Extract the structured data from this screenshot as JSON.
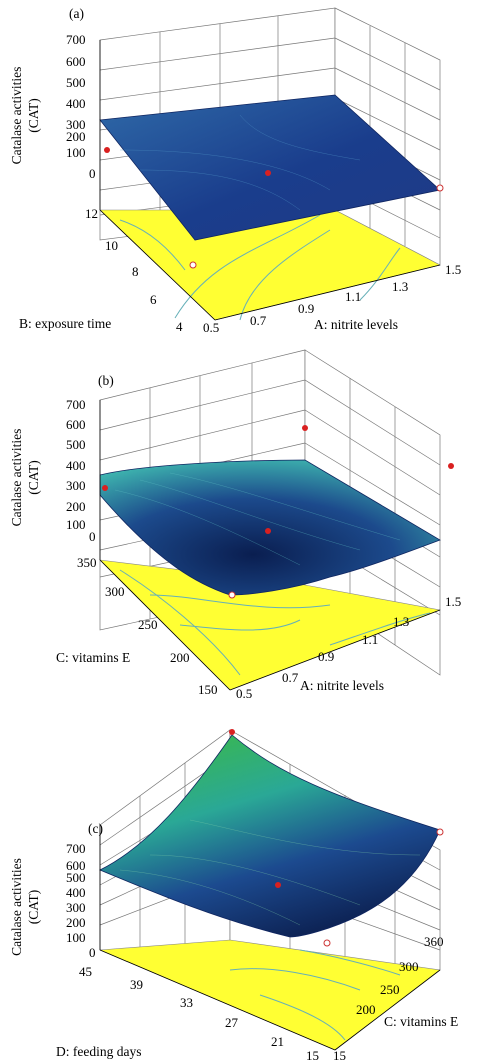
{
  "chart_data": [
    {
      "type": "surface",
      "panel_label": "(a)",
      "zlabel_line1": "Catalase activities",
      "zlabel_line2": "(CAT)",
      "xlabel": "A: nitrite levels",
      "ylabel": "B: exposure time",
      "z_ticks": [
        "700",
        "600",
        "500",
        "400",
        "300",
        "200",
        "100",
        "0"
      ],
      "x_ticks": [
        "0.5",
        "0.7",
        "0.9",
        "1.1",
        "1.3",
        "1.5"
      ],
      "y_ticks": [
        "4",
        "6",
        "8",
        "10",
        "12"
      ],
      "zlim": [
        0,
        700
      ],
      "xlim": [
        0.5,
        1.5
      ],
      "ylim": [
        4,
        12
      ],
      "surface_corners_z": {
        "x0_y0": 40,
        "x1_y0": 70,
        "x0_y1": 270,
        "x1_y1": 280
      },
      "design_points_z": [
        120,
        100,
        100
      ],
      "colors": {
        "surface_low": "#1f3a8c",
        "surface_high": "#3aa0a8",
        "floor": "#ffff33"
      }
    },
    {
      "type": "surface",
      "panel_label": "(b)",
      "zlabel_line1": "Catalase activities",
      "zlabel_line2": "(CAT)",
      "xlabel": "A: nitrite levels",
      "ylabel": "C: vitamins E",
      "z_ticks": [
        "700",
        "600",
        "500",
        "400",
        "300",
        "200",
        "100",
        "0"
      ],
      "x_ticks": [
        "0.5",
        "0.7",
        "0.9",
        "1.1",
        "1.3",
        "1.5"
      ],
      "y_ticks": [
        "150",
        "200",
        "250",
        "300",
        "350"
      ],
      "zlim": [
        0,
        700
      ],
      "xlim": [
        0.5,
        1.5
      ],
      "ylim": [
        150,
        350
      ],
      "surface_corners_z": {
        "x0_y0": 210,
        "x1_y0": 240,
        "x0_y1": 340,
        "x1_y1": 370
      },
      "design_points_z": [
        250,
        120,
        420
      ],
      "colors": {
        "surface_low": "#0b2a6a",
        "surface_high": "#3ab5b0",
        "floor": "#ffff33"
      }
    },
    {
      "type": "surface",
      "panel_label": "(c)",
      "zlabel_line1": "Catalase activities",
      "zlabel_line2": "(CAT)",
      "xlabel": "C: vitamins E",
      "ylabel": "D: feeding days",
      "z_ticks": [
        "700",
        "600",
        "500",
        "400",
        "300",
        "200",
        "100",
        "0"
      ],
      "x_ticks": [
        "150",
        "200",
        "250",
        "300",
        "360"
      ],
      "y_ticks": [
        "15",
        "21",
        "27",
        "33",
        "39",
        "45"
      ],
      "zlim": [
        0,
        700
      ],
      "xlim": [
        150,
        360
      ],
      "ylim": [
        15,
        45
      ],
      "surface_corners_z": {
        "x0_y0": 700,
        "x1_y0": 300,
        "x0_y1": 520,
        "x1_y1": 440
      },
      "design_points_z": [
        700,
        200,
        420
      ],
      "colors": {
        "surface_low": "#1e3f8f",
        "surface_high": "#35b84a",
        "floor": "#ffff33"
      }
    }
  ]
}
